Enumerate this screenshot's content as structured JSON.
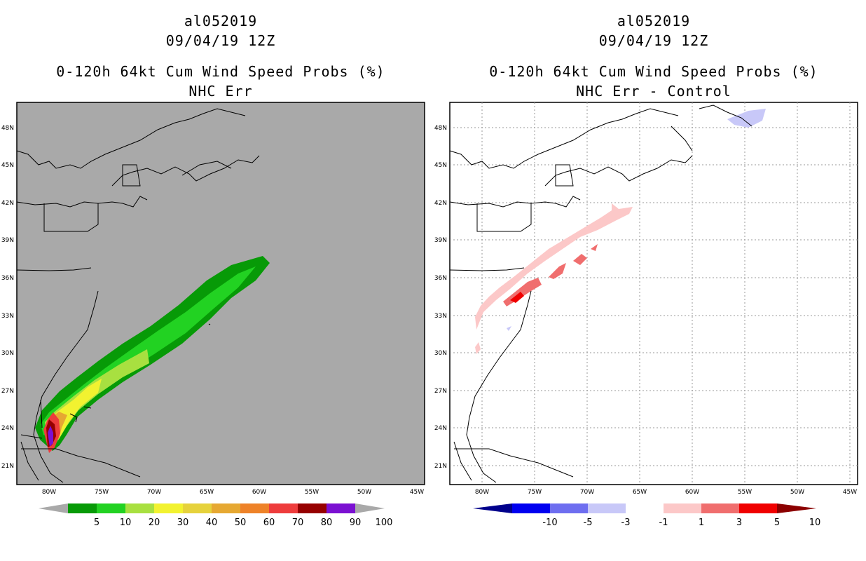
{
  "left_panel": {
    "storm_id": "al052019",
    "datetime": "09/04/19 12Z",
    "product": "0-120h 64kt Cum Wind Speed Probs (%)",
    "subtitle": "NHC Err",
    "background": "#a9a9a9",
    "colorbar": {
      "labels": [
        "5",
        "10",
        "20",
        "30",
        "40",
        "50",
        "60",
        "70",
        "80",
        "90",
        "100"
      ],
      "colors": [
        "#a9a9a9",
        "#079a07",
        "#22d222",
        "#a8e040",
        "#f2f230",
        "#e6d23c",
        "#e6a832",
        "#ee8228",
        "#ee3c3c",
        "#960000",
        "#7b10d2",
        "#a9a9a9"
      ]
    }
  },
  "right_panel": {
    "storm_id": "al052019",
    "datetime": "09/04/19 12Z",
    "product": "0-120h 64kt Cum Wind Speed Probs (%)",
    "subtitle": "NHC Err - Control",
    "background": "#ffffff",
    "colorbar": {
      "labels": [
        "-10",
        "-5",
        "-3",
        "-1",
        "1",
        "3",
        "5",
        "10"
      ],
      "colors": [
        "#00008c",
        "#0000f0",
        "#6e6ef0",
        "#c8c8f8",
        "#ffffff",
        "#fcc8c8",
        "#f06e6e",
        "#f00000",
        "#8c0000"
      ]
    }
  },
  "axes": {
    "lat_labels": [
      "48N",
      "45N",
      "42N",
      "39N",
      "36N",
      "33N",
      "30N",
      "27N",
      "24N",
      "21N"
    ],
    "lon_labels": [
      "80W",
      "75W",
      "70W",
      "65W",
      "60W",
      "55W",
      "50W",
      "45W"
    ]
  }
}
